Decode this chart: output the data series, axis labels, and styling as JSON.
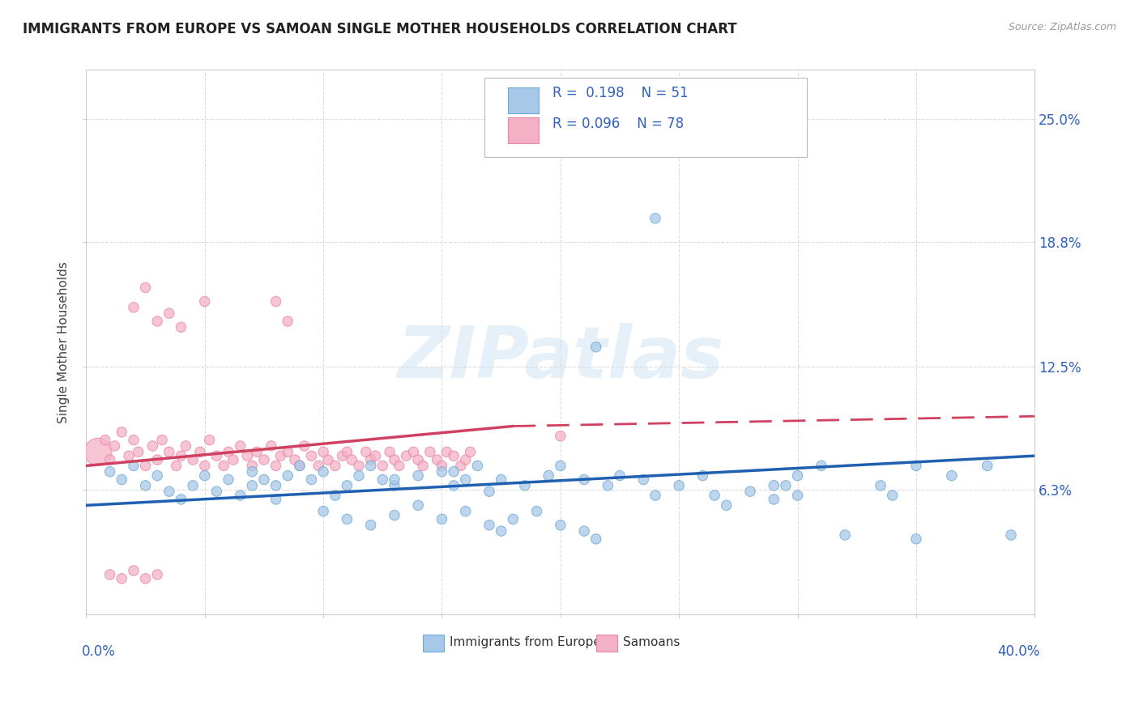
{
  "title": "IMMIGRANTS FROM EUROPE VS SAMOAN SINGLE MOTHER HOUSEHOLDS CORRELATION CHART",
  "source": "Source: ZipAtlas.com",
  "ylabel": "Single Mother Households",
  "ylabel_ticks": [
    "6.3%",
    "12.5%",
    "18.8%",
    "25.0%"
  ],
  "ylabel_tick_vals": [
    0.063,
    0.125,
    0.188,
    0.25
  ],
  "xlim": [
    0.0,
    0.4
  ],
  "ylim": [
    0.0,
    0.275
  ],
  "blue_color": "#a8c8e8",
  "blue_edge": "#6aaad4",
  "pink_color": "#f4b0c4",
  "pink_edge": "#e888a8",
  "blue_line_color": "#2060b0",
  "pink_line_color": "#d04060",
  "grid_color": "#dddddd",
  "background_color": "#ffffff",
  "legend_text_color": "#3060c0",
  "blue_scatter": [
    [
      0.01,
      0.072
    ],
    [
      0.015,
      0.068
    ],
    [
      0.02,
      0.075
    ],
    [
      0.025,
      0.065
    ],
    [
      0.03,
      0.07
    ],
    [
      0.035,
      0.062
    ],
    [
      0.04,
      0.058
    ],
    [
      0.045,
      0.065
    ],
    [
      0.05,
      0.07
    ],
    [
      0.055,
      0.062
    ],
    [
      0.06,
      0.068
    ],
    [
      0.065,
      0.06
    ],
    [
      0.07,
      0.072
    ],
    [
      0.075,
      0.068
    ],
    [
      0.08,
      0.065
    ],
    [
      0.085,
      0.07
    ],
    [
      0.09,
      0.075
    ],
    [
      0.095,
      0.068
    ],
    [
      0.1,
      0.072
    ],
    [
      0.105,
      0.06
    ],
    [
      0.11,
      0.065
    ],
    [
      0.115,
      0.07
    ],
    [
      0.12,
      0.075
    ],
    [
      0.125,
      0.068
    ],
    [
      0.13,
      0.065
    ],
    [
      0.14,
      0.07
    ],
    [
      0.15,
      0.072
    ],
    [
      0.155,
      0.065
    ],
    [
      0.16,
      0.068
    ],
    [
      0.165,
      0.075
    ],
    [
      0.17,
      0.062
    ],
    [
      0.175,
      0.068
    ],
    [
      0.185,
      0.065
    ],
    [
      0.195,
      0.07
    ],
    [
      0.2,
      0.075
    ],
    [
      0.21,
      0.068
    ],
    [
      0.22,
      0.065
    ],
    [
      0.225,
      0.07
    ],
    [
      0.235,
      0.068
    ],
    [
      0.24,
      0.06
    ],
    [
      0.25,
      0.065
    ],
    [
      0.26,
      0.07
    ],
    [
      0.265,
      0.06
    ],
    [
      0.27,
      0.055
    ],
    [
      0.28,
      0.062
    ],
    [
      0.29,
      0.058
    ],
    [
      0.295,
      0.065
    ],
    [
      0.3,
      0.06
    ],
    [
      0.32,
      0.04
    ],
    [
      0.35,
      0.038
    ],
    [
      0.39,
      0.04
    ],
    [
      0.215,
      0.135
    ],
    [
      0.155,
      0.072
    ],
    [
      0.3,
      0.07
    ],
    [
      0.31,
      0.075
    ],
    [
      0.335,
      0.065
    ],
    [
      0.34,
      0.06
    ],
    [
      0.24,
      0.2
    ],
    [
      0.35,
      0.075
    ],
    [
      0.365,
      0.07
    ],
    [
      0.38,
      0.075
    ],
    [
      0.29,
      0.065
    ],
    [
      0.13,
      0.068
    ],
    [
      0.07,
      0.065
    ],
    [
      0.08,
      0.058
    ],
    [
      0.1,
      0.052
    ],
    [
      0.11,
      0.048
    ],
    [
      0.12,
      0.045
    ],
    [
      0.13,
      0.05
    ],
    [
      0.14,
      0.055
    ],
    [
      0.15,
      0.048
    ],
    [
      0.16,
      0.052
    ],
    [
      0.17,
      0.045
    ],
    [
      0.175,
      0.042
    ],
    [
      0.18,
      0.048
    ],
    [
      0.19,
      0.052
    ],
    [
      0.2,
      0.045
    ],
    [
      0.21,
      0.042
    ],
    [
      0.215,
      0.038
    ]
  ],
  "pink_scatter": [
    [
      0.005,
      0.082
    ],
    [
      0.008,
      0.088
    ],
    [
      0.01,
      0.078
    ],
    [
      0.012,
      0.085
    ],
    [
      0.015,
      0.092
    ],
    [
      0.018,
      0.08
    ],
    [
      0.02,
      0.088
    ],
    [
      0.022,
      0.082
    ],
    [
      0.025,
      0.075
    ],
    [
      0.028,
      0.085
    ],
    [
      0.03,
      0.078
    ],
    [
      0.032,
      0.088
    ],
    [
      0.035,
      0.082
    ],
    [
      0.038,
      0.075
    ],
    [
      0.04,
      0.08
    ],
    [
      0.042,
      0.085
    ],
    [
      0.045,
      0.078
    ],
    [
      0.048,
      0.082
    ],
    [
      0.05,
      0.075
    ],
    [
      0.052,
      0.088
    ],
    [
      0.055,
      0.08
    ],
    [
      0.058,
      0.075
    ],
    [
      0.06,
      0.082
    ],
    [
      0.062,
      0.078
    ],
    [
      0.065,
      0.085
    ],
    [
      0.068,
      0.08
    ],
    [
      0.07,
      0.075
    ],
    [
      0.072,
      0.082
    ],
    [
      0.075,
      0.078
    ],
    [
      0.078,
      0.085
    ],
    [
      0.08,
      0.075
    ],
    [
      0.082,
      0.08
    ],
    [
      0.085,
      0.082
    ],
    [
      0.088,
      0.078
    ],
    [
      0.09,
      0.075
    ],
    [
      0.092,
      0.085
    ],
    [
      0.095,
      0.08
    ],
    [
      0.098,
      0.075
    ],
    [
      0.1,
      0.082
    ],
    [
      0.102,
      0.078
    ],
    [
      0.105,
      0.075
    ],
    [
      0.108,
      0.08
    ],
    [
      0.11,
      0.082
    ],
    [
      0.112,
      0.078
    ],
    [
      0.115,
      0.075
    ],
    [
      0.118,
      0.082
    ],
    [
      0.12,
      0.078
    ],
    [
      0.122,
      0.08
    ],
    [
      0.125,
      0.075
    ],
    [
      0.128,
      0.082
    ],
    [
      0.13,
      0.078
    ],
    [
      0.132,
      0.075
    ],
    [
      0.135,
      0.08
    ],
    [
      0.138,
      0.082
    ],
    [
      0.14,
      0.078
    ],
    [
      0.142,
      0.075
    ],
    [
      0.145,
      0.082
    ],
    [
      0.148,
      0.078
    ],
    [
      0.15,
      0.075
    ],
    [
      0.152,
      0.082
    ],
    [
      0.155,
      0.08
    ],
    [
      0.158,
      0.075
    ],
    [
      0.16,
      0.078
    ],
    [
      0.162,
      0.082
    ],
    [
      0.02,
      0.155
    ],
    [
      0.025,
      0.165
    ],
    [
      0.03,
      0.148
    ],
    [
      0.035,
      0.152
    ],
    [
      0.04,
      0.145
    ],
    [
      0.05,
      0.158
    ],
    [
      0.08,
      0.158
    ],
    [
      0.085,
      0.148
    ],
    [
      0.01,
      0.02
    ],
    [
      0.015,
      0.018
    ],
    [
      0.02,
      0.022
    ],
    [
      0.025,
      0.018
    ],
    [
      0.03,
      0.02
    ],
    [
      0.2,
      0.09
    ]
  ],
  "pink_large_idx": 0,
  "pink_large_size": 600,
  "blue_trend": [
    0.0,
    0.4,
    0.055,
    0.08
  ],
  "pink_trend_solid": [
    0.0,
    0.18,
    0.075,
    0.095
  ],
  "pink_trend_dashed": [
    0.18,
    0.4,
    0.095,
    0.1
  ]
}
